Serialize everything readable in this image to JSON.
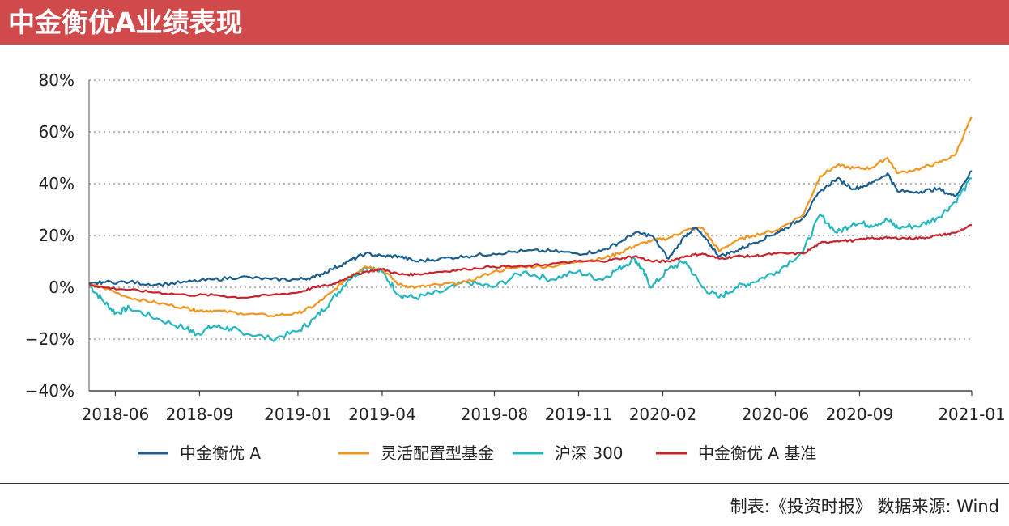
{
  "header": {
    "title": "中金衡优A业绩表现"
  },
  "footer": {
    "source": "制表:《投资时报》 数据来源: Wind"
  },
  "chart_data": {
    "type": "line",
    "title": "中金衡优A业绩表现",
    "ylabel": "",
    "xlabel": "",
    "ylim": [
      -40,
      80
    ],
    "y_ticks": [
      80,
      60,
      40,
      20,
      0,
      -20,
      -40
    ],
    "y_tick_labels": [
      "80%",
      "60%",
      "40%",
      "20%",
      "0%",
      "−20%",
      "−40%"
    ],
    "x_range": [
      2018.38,
      2021.0
    ],
    "x_ticks": [
      "2018-06",
      "2018-09",
      "2019-01",
      "2019-04",
      "2019-08",
      "2019-11",
      "2020-02",
      "2020-06",
      "2020-09",
      "2021-01"
    ],
    "x_tick_positions": [
      2018.458,
      2018.708,
      2019.0,
      2019.25,
      2019.583,
      2019.833,
      2020.083,
      2020.417,
      2020.667,
      2021.0
    ],
    "grid": "horizontal dotted",
    "legend_position": "bottom",
    "series": [
      {
        "name": "中金衡优 A",
        "color": "#1b5e8e",
        "points": [
          [
            2018.38,
            1
          ],
          [
            2018.42,
            2
          ],
          [
            2018.5,
            2
          ],
          [
            2018.58,
            1
          ],
          [
            2018.67,
            2
          ],
          [
            2018.75,
            3
          ],
          [
            2018.83,
            4
          ],
          [
            2018.92,
            3
          ],
          [
            2019.0,
            3
          ],
          [
            2019.05,
            4
          ],
          [
            2019.1,
            7
          ],
          [
            2019.15,
            10
          ],
          [
            2019.2,
            13
          ],
          [
            2019.25,
            12
          ],
          [
            2019.3,
            12
          ],
          [
            2019.35,
            10
          ],
          [
            2019.42,
            11
          ],
          [
            2019.5,
            12
          ],
          [
            2019.58,
            13
          ],
          [
            2019.67,
            14
          ],
          [
            2019.75,
            14
          ],
          [
            2019.83,
            13
          ],
          [
            2019.9,
            14
          ],
          [
            2019.95,
            17
          ],
          [
            2020.0,
            21
          ],
          [
            2020.05,
            20
          ],
          [
            2020.1,
            11
          ],
          [
            2020.15,
            20
          ],
          [
            2020.18,
            23
          ],
          [
            2020.22,
            17
          ],
          [
            2020.25,
            12
          ],
          [
            2020.3,
            14
          ],
          [
            2020.35,
            17
          ],
          [
            2020.42,
            21
          ],
          [
            2020.45,
            23
          ],
          [
            2020.5,
            27
          ],
          [
            2020.55,
            37
          ],
          [
            2020.6,
            42
          ],
          [
            2020.65,
            38
          ],
          [
            2020.7,
            40
          ],
          [
            2020.75,
            44
          ],
          [
            2020.78,
            37
          ],
          [
            2020.85,
            37
          ],
          [
            2020.9,
            38
          ],
          [
            2020.95,
            35
          ],
          [
            2021.0,
            45
          ]
        ]
      },
      {
        "name": "灵活配置型基金",
        "color": "#f0951e",
        "points": [
          [
            2018.38,
            1
          ],
          [
            2018.42,
            0
          ],
          [
            2018.5,
            -4
          ],
          [
            2018.58,
            -6
          ],
          [
            2018.67,
            -8
          ],
          [
            2018.7,
            -9
          ],
          [
            2018.75,
            -9
          ],
          [
            2018.83,
            -10
          ],
          [
            2018.92,
            -11
          ],
          [
            2019.0,
            -10
          ],
          [
            2019.05,
            -7
          ],
          [
            2019.1,
            -2
          ],
          [
            2019.15,
            4
          ],
          [
            2019.2,
            8
          ],
          [
            2019.25,
            7
          ],
          [
            2019.3,
            1
          ],
          [
            2019.35,
            0
          ],
          [
            2019.42,
            1
          ],
          [
            2019.5,
            2
          ],
          [
            2019.58,
            6
          ],
          [
            2019.67,
            8
          ],
          [
            2019.75,
            8
          ],
          [
            2019.83,
            10
          ],
          [
            2019.9,
            11
          ],
          [
            2019.95,
            13
          ],
          [
            2020.0,
            16
          ],
          [
            2020.05,
            18
          ],
          [
            2020.1,
            19
          ],
          [
            2020.15,
            22
          ],
          [
            2020.2,
            23
          ],
          [
            2020.25,
            14
          ],
          [
            2020.3,
            18
          ],
          [
            2020.35,
            20
          ],
          [
            2020.42,
            22
          ],
          [
            2020.5,
            28
          ],
          [
            2020.55,
            43
          ],
          [
            2020.6,
            47
          ],
          [
            2020.65,
            46
          ],
          [
            2020.7,
            46
          ],
          [
            2020.75,
            50
          ],
          [
            2020.78,
            44
          ],
          [
            2020.85,
            46
          ],
          [
            2020.9,
            48
          ],
          [
            2020.95,
            51
          ],
          [
            2021.0,
            66
          ]
        ]
      },
      {
        "name": "沪深 300",
        "color": "#25b7be",
        "points": [
          [
            2018.38,
            1
          ],
          [
            2018.42,
            -5
          ],
          [
            2018.46,
            -10
          ],
          [
            2018.5,
            -8
          ],
          [
            2018.58,
            -12
          ],
          [
            2018.67,
            -16
          ],
          [
            2018.7,
            -18
          ],
          [
            2018.75,
            -15
          ],
          [
            2018.8,
            -16
          ],
          [
            2018.83,
            -17
          ],
          [
            2018.92,
            -20
          ],
          [
            2019.0,
            -17
          ],
          [
            2019.05,
            -12
          ],
          [
            2019.1,
            -5
          ],
          [
            2019.15,
            3
          ],
          [
            2019.2,
            8
          ],
          [
            2019.25,
            6
          ],
          [
            2019.3,
            -3
          ],
          [
            2019.35,
            -4
          ],
          [
            2019.42,
            -2
          ],
          [
            2019.5,
            2
          ],
          [
            2019.58,
            0
          ],
          [
            2019.67,
            6
          ],
          [
            2019.75,
            3
          ],
          [
            2019.83,
            6
          ],
          [
            2019.9,
            3
          ],
          [
            2019.95,
            7
          ],
          [
            2020.0,
            11
          ],
          [
            2020.02,
            7
          ],
          [
            2020.05,
            0
          ],
          [
            2020.1,
            7
          ],
          [
            2020.15,
            10
          ],
          [
            2020.2,
            0
          ],
          [
            2020.25,
            -4
          ],
          [
            2020.3,
            0
          ],
          [
            2020.35,
            2
          ],
          [
            2020.42,
            6
          ],
          [
            2020.5,
            14
          ],
          [
            2020.55,
            28
          ],
          [
            2020.6,
            21
          ],
          [
            2020.65,
            25
          ],
          [
            2020.7,
            24
          ],
          [
            2020.75,
            26
          ],
          [
            2020.78,
            23
          ],
          [
            2020.85,
            24
          ],
          [
            2020.9,
            27
          ],
          [
            2020.95,
            33
          ],
          [
            2021.0,
            42
          ]
        ]
      },
      {
        "name": "中金衡优 A 基准",
        "color": "#c8232c",
        "points": [
          [
            2018.38,
            1
          ],
          [
            2018.42,
            0
          ],
          [
            2018.5,
            -1
          ],
          [
            2018.58,
            -2
          ],
          [
            2018.67,
            -3
          ],
          [
            2018.75,
            -3
          ],
          [
            2018.83,
            -4
          ],
          [
            2018.92,
            -3
          ],
          [
            2019.0,
            -2
          ],
          [
            2019.05,
            0
          ],
          [
            2019.1,
            1
          ],
          [
            2019.15,
            4
          ],
          [
            2019.2,
            6
          ],
          [
            2019.25,
            7
          ],
          [
            2019.3,
            5
          ],
          [
            2019.35,
            5
          ],
          [
            2019.42,
            6
          ],
          [
            2019.5,
            7
          ],
          [
            2019.58,
            8
          ],
          [
            2019.67,
            8
          ],
          [
            2019.75,
            9
          ],
          [
            2019.83,
            10
          ],
          [
            2019.9,
            10
          ],
          [
            2019.95,
            11
          ],
          [
            2020.0,
            12
          ],
          [
            2020.05,
            10
          ],
          [
            2020.1,
            10
          ],
          [
            2020.15,
            12
          ],
          [
            2020.2,
            13
          ],
          [
            2020.25,
            11
          ],
          [
            2020.3,
            12
          ],
          [
            2020.35,
            12
          ],
          [
            2020.42,
            13
          ],
          [
            2020.5,
            13
          ],
          [
            2020.55,
            17
          ],
          [
            2020.6,
            18
          ],
          [
            2020.65,
            18
          ],
          [
            2020.7,
            19
          ],
          [
            2020.75,
            19
          ],
          [
            2020.8,
            19
          ],
          [
            2020.85,
            19
          ],
          [
            2020.9,
            20
          ],
          [
            2020.95,
            21
          ],
          [
            2021.0,
            24
          ]
        ]
      }
    ]
  }
}
